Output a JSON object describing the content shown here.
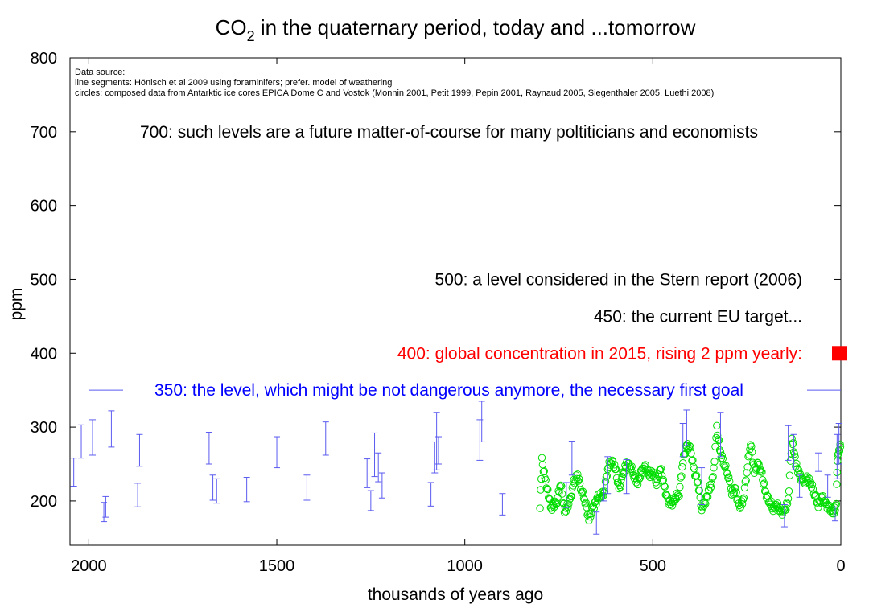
{
  "chart_data": {
    "type": "scatter",
    "title": {
      "main": "CO",
      "sub": "2",
      "rest": " in the quaternary period, today and ...tomorrow"
    },
    "xlabel": "thousands of years ago",
    "ylabel": "ppm",
    "xlim": [
      2050,
      0
    ],
    "ylim": [
      140,
      800
    ],
    "x_ticks": [
      2000,
      1500,
      1000,
      500,
      0
    ],
    "y_ticks": [
      200,
      300,
      400,
      500,
      600,
      700,
      800
    ],
    "source_lines": [
      "Data source:",
      "line segments: Hönisch et al 2009 using foraminifers; prefer. model of weathering",
      "circles: composed data from Antarktic ice cores EPICA Dome C and Vostok (Monnin 2001, Petit 1999, Pepin 2001, Raynaud 2005, Siegenthaler 2005, Luethi 2008)"
    ],
    "annotations": [
      {
        "y": 700,
        "text": "700: such levels are a future matter-of-course for many poltiticians and economists",
        "color": "#000000",
        "align": "center"
      },
      {
        "y": 500,
        "text": "500: a level considered in the Stern report (2006)",
        "color": "#000000",
        "align": "right"
      },
      {
        "y": 450,
        "text": "450: the current EU target...",
        "color": "#000000",
        "align": "right"
      },
      {
        "y": 400,
        "text": "400: global concentration in 2015, rising 2 ppm yearly:",
        "color": "#ff0000",
        "align": "right"
      },
      {
        "y": 350,
        "text": "350: the level, which might be not dangerous anymore, the necessary first goal",
        "color": "#0000ff",
        "align": "center"
      }
    ],
    "marker_2015": {
      "x": 0,
      "y": 400,
      "color": "#ff0000"
    },
    "line_350": {
      "y": 350,
      "color": "#5a5af0"
    },
    "errorbars": {
      "color": "#5a5af0",
      "points": [
        [
          2040,
          220,
          258
        ],
        [
          2020,
          258,
          303
        ],
        [
          1990,
          262,
          310
        ],
        [
          1960,
          172,
          198
        ],
        [
          1955,
          178,
          206
        ],
        [
          1940,
          273,
          322
        ],
        [
          1870,
          192,
          224
        ],
        [
          1865,
          247,
          290
        ],
        [
          1680,
          250,
          293
        ],
        [
          1670,
          201,
          235
        ],
        [
          1660,
          197,
          230
        ],
        [
          1580,
          199,
          232
        ],
        [
          1500,
          245,
          287
        ],
        [
          1420,
          201,
          235
        ],
        [
          1370,
          262,
          307
        ],
        [
          1260,
          218,
          257
        ],
        [
          1250,
          187,
          214
        ],
        [
          1240,
          233,
          292
        ],
        [
          1230,
          226,
          265
        ],
        [
          1220,
          204,
          238
        ],
        [
          1090,
          193,
          225
        ],
        [
          1080,
          238,
          280
        ],
        [
          1075,
          242,
          320
        ],
        [
          1070,
          250,
          287
        ],
        [
          960,
          255,
          310
        ],
        [
          955,
          280,
          335
        ],
        [
          900,
          181,
          210
        ],
        [
          730,
          191,
          225
        ],
        [
          715,
          235,
          281
        ],
        [
          650,
          155,
          185
        ],
        [
          630,
          200,
          230
        ],
        [
          620,
          210,
          260
        ],
        [
          570,
          210,
          256
        ],
        [
          420,
          260,
          305
        ],
        [
          410,
          275,
          323
        ],
        [
          370,
          195,
          245
        ],
        [
          320,
          260,
          320
        ],
        [
          150,
          165,
          195
        ],
        [
          140,
          255,
          302
        ],
        [
          125,
          242,
          290
        ],
        [
          110,
          205,
          235
        ],
        [
          60,
          240,
          265
        ],
        [
          35,
          205,
          235
        ],
        [
          15,
          173,
          192
        ],
        [
          10,
          230,
          290
        ],
        [
          5,
          250,
          305
        ]
      ]
    },
    "ice_core": {
      "color": "#00dd00",
      "anchors": [
        [
          800,
          190
        ],
        [
          795,
          255
        ],
        [
          785,
          225
        ],
        [
          770,
          190
        ],
        [
          755,
          200
        ],
        [
          745,
          225
        ],
        [
          735,
          185
        ],
        [
          720,
          200
        ],
        [
          710,
          225
        ],
        [
          700,
          235
        ],
        [
          690,
          215
        ],
        [
          680,
          200
        ],
        [
          670,
          175
        ],
        [
          660,
          190
        ],
        [
          645,
          205
        ],
        [
          630,
          210
        ],
        [
          620,
          245
        ],
        [
          610,
          255
        ],
        [
          600,
          245
        ],
        [
          590,
          215
        ],
        [
          580,
          235
        ],
        [
          570,
          250
        ],
        [
          560,
          248
        ],
        [
          550,
          235
        ],
        [
          540,
          225
        ],
        [
          530,
          240
        ],
        [
          520,
          245
        ],
        [
          510,
          235
        ],
        [
          500,
          240
        ],
        [
          490,
          225
        ],
        [
          480,
          245
        ],
        [
          470,
          220
        ],
        [
          460,
          200
        ],
        [
          450,
          195
        ],
        [
          440,
          205
        ],
        [
          430,
          210
        ],
        [
          420,
          255
        ],
        [
          410,
          275
        ],
        [
          400,
          270
        ],
        [
          390,
          240
        ],
        [
          380,
          225
        ],
        [
          370,
          190
        ],
        [
          360,
          200
        ],
        [
          350,
          215
        ],
        [
          340,
          230
        ],
        [
          330,
          298
        ],
        [
          320,
          265
        ],
        [
          310,
          250
        ],
        [
          300,
          235
        ],
        [
          290,
          210
        ],
        [
          280,
          215
        ],
        [
          270,
          190
        ],
        [
          260,
          200
        ],
        [
          250,
          240
        ],
        [
          240,
          280
        ],
        [
          230,
          240
        ],
        [
          220,
          250
        ],
        [
          210,
          235
        ],
        [
          200,
          210
        ],
        [
          190,
          200
        ],
        [
          180,
          190
        ],
        [
          170,
          195
        ],
        [
          160,
          185
        ],
        [
          150,
          185
        ],
        [
          140,
          200
        ],
        [
          130,
          285
        ],
        [
          125,
          270
        ],
        [
          120,
          250
        ],
        [
          110,
          235
        ],
        [
          100,
          225
        ],
        [
          90,
          230
        ],
        [
          80,
          225
        ],
        [
          70,
          210
        ],
        [
          60,
          195
        ],
        [
          50,
          205
        ],
        [
          40,
          195
        ],
        [
          30,
          190
        ],
        [
          20,
          185
        ],
        [
          15,
          190
        ],
        [
          12,
          200
        ],
        [
          10,
          240
        ],
        [
          8,
          260
        ],
        [
          5,
          265
        ],
        [
          2,
          275
        ],
        [
          0,
          280
        ]
      ]
    }
  }
}
